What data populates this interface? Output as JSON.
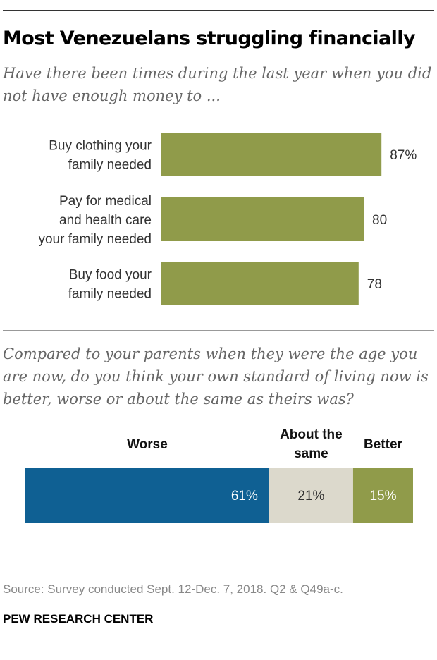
{
  "title": "Most Venezuelans struggling financially",
  "subtitle1": "Have there been times during the last year when you did not have enough money to ...",
  "subtitle2": "Compared to your parents when they were the age you are now, do you think your own standard of living now is better, worse or about the same as theirs was?",
  "source": "Source: Survey conducted Sept. 12-Dec. 7, 2018. Q2 & Q49a-c.",
  "brand": "PEW RESEARCH CENTER",
  "colors": {
    "olive": "#909b4a",
    "blue": "#0f6093",
    "beige": "#dcd9cc"
  },
  "chart_data": [
    {
      "type": "bar",
      "orientation": "horizontal",
      "categories": [
        [
          "Buy clothing your",
          "family needed"
        ],
        [
          "Pay for medical",
          "and health care",
          "your family needed"
        ],
        [
          "Buy food your",
          "family needed"
        ]
      ],
      "values": [
        87,
        80,
        78
      ],
      "value_labels": [
        "87%",
        "80",
        "78"
      ],
      "xlim": [
        0,
        100
      ]
    },
    {
      "type": "bar",
      "orientation": "stacked-horizontal",
      "series": [
        {
          "name": [
            "Worse"
          ],
          "value": 61,
          "label": "61%"
        },
        {
          "name": [
            "About the",
            "same"
          ],
          "value": 21,
          "label": "21%"
        },
        {
          "name": [
            "Better"
          ],
          "value": 15,
          "label": "15%"
        }
      ]
    }
  ]
}
